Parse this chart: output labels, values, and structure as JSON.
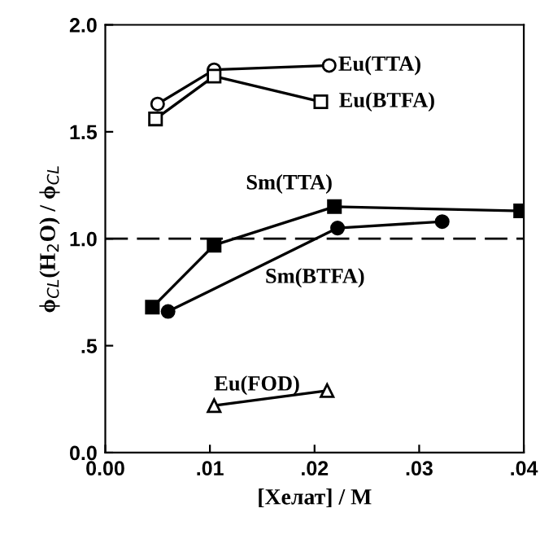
{
  "chart_data": {
    "type": "line",
    "xlabel": "[Хелат] / M",
    "ylabel": "ϕ$_{CL}$(H$_{2}$O) / ϕ$_{CL}$",
    "xlim": [
      0,
      0.04
    ],
    "xticks": [
      {
        "value": 0,
        "label": "0.00"
      },
      {
        "value": 0.01,
        "label": ".01"
      },
      {
        "value": 0.02,
        "label": ".02"
      },
      {
        "value": 0.03,
        "label": ".03"
      },
      {
        "value": 0.04,
        "label": ".04"
      }
    ],
    "ylim": [
      0,
      2.0
    ],
    "yticks": [
      {
        "value": 0,
        "label": "0.0"
      },
      {
        "value": 0.5,
        "label": ".5"
      },
      {
        "value": 1.0,
        "label": "1.0"
      },
      {
        "value": 1.5,
        "label": "1.5"
      },
      {
        "value": 2.0,
        "label": "2.0"
      }
    ],
    "grid": false,
    "legend": false,
    "line_style": "solid",
    "ref_lines": [
      {
        "axis": "y",
        "value": 1.0,
        "color": "#000000",
        "line_style": "dashed"
      }
    ],
    "series": [
      {
        "name": "Eu(TTA)",
        "color": "#000000",
        "marker": "circle",
        "x": [
          0.005,
          0.0104,
          0.0214
        ],
        "values": [
          1.63,
          1.79,
          1.81
        ]
      },
      {
        "name": "Eu(BTFA)",
        "color": "#000000",
        "marker": "square",
        "x": [
          0.0048,
          0.0104,
          0.0206
        ],
        "values": [
          1.56,
          1.76,
          1.64
        ]
      },
      {
        "name": "Sm(TTA)",
        "color": "#000000",
        "marker": "square",
        "x": [
          0.0045,
          0.0104,
          0.0219,
          0.0397
        ],
        "values": [
          0.68,
          0.97,
          1.15,
          1.13
        ]
      },
      {
        "name": "Sm(BTFA)",
        "color": "#000000",
        "marker": "circle",
        "x": [
          0.006,
          0.0222,
          0.0322
        ],
        "values": [
          0.66,
          1.05,
          1.08
        ]
      },
      {
        "name": "Eu(FOD)",
        "color": "#000000",
        "marker": "triangle",
        "x": [
          0.0104,
          0.0212
        ],
        "values": [
          0.22,
          0.29
        ]
      }
    ]
  }
}
